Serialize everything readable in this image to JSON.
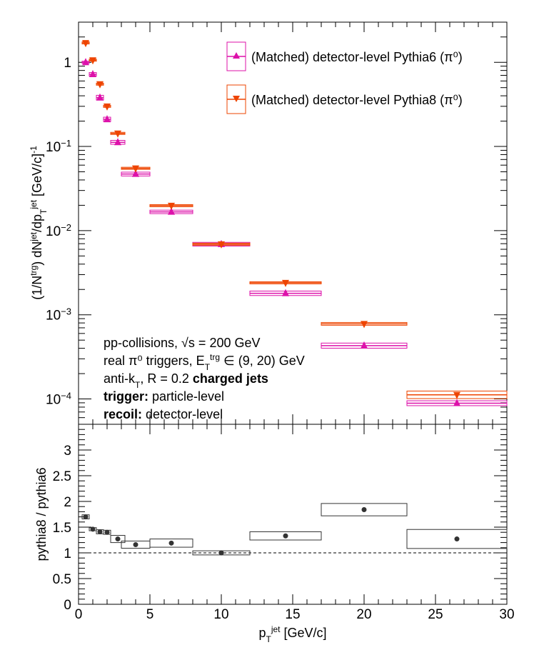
{
  "chart_data": [
    {
      "type": "scatter",
      "panel": "top",
      "x_axis": {
        "range": [
          0,
          30
        ]
      },
      "y_axis": {
        "scale": "log",
        "range": [
          5e-05,
          3.0
        ],
        "ticks": [
          {
            "v": 1,
            "base": "1",
            "exp": ""
          },
          {
            "v": 0.1,
            "base": "10",
            "exp": "−1"
          },
          {
            "v": 0.01,
            "base": "10",
            "exp": "−2"
          },
          {
            "v": 0.001,
            "base": "10",
            "exp": "−3"
          },
          {
            "v": 0.0001,
            "base": "10",
            "exp": "−4"
          }
        ]
      },
      "ylabel": {
        "p1": "(1/N",
        "sup1": "trg",
        "p2": ") dN",
        "sup2": "jet",
        "p3": "/dp",
        "sub3": "T",
        "sup3": "jet",
        "p4": " [GeV/c]",
        "sup4": "-1"
      },
      "legend": {
        "placement": "top-right",
        "entries": [
          {
            "label": "(Matched) detector-level Pythia6 (π⁰)",
            "marker": "triangle-up",
            "color": "#dd11aa"
          },
          {
            "label": "(Matched) detector-level Pythia8 (π⁰)",
            "marker": "triangle-down",
            "color": "#ee4400"
          }
        ]
      },
      "annotations": {
        "line1": "pp-collisions, √s = 200 GeV",
        "line2_a": "real π⁰ triggers, E",
        "line2_sub": "T",
        "line2_sup": "trg",
        "line2_b": " ∈ (9, 20) GeV",
        "line3_a": "anti-k",
        "line3_sub": "T",
        "line3_b": ", R = 0.2 ",
        "line3_bold": "charged jets",
        "line4_bold": "trigger:",
        "line4": " particle-level",
        "line5_bold": "recoil:",
        "line5": " detector-level"
      },
      "series": [
        {
          "name": "(Matched) detector-level Pythia6 (π⁰)",
          "color": "#dd11aa",
          "marker": "triangle-up",
          "points": [
            {
              "x": 0.5,
              "xlo": 0.25,
              "xhi": 0.75,
              "y": 1.0,
              "ylo": 0.97,
              "yhi": 1.03
            },
            {
              "x": 1.0,
              "xlo": 0.75,
              "xhi": 1.25,
              "y": 0.72,
              "ylo": 0.69,
              "yhi": 0.76
            },
            {
              "x": 1.5,
              "xlo": 1.25,
              "xhi": 1.75,
              "y": 0.38,
              "ylo": 0.36,
              "yhi": 0.41
            },
            {
              "x": 2.0,
              "xlo": 1.75,
              "xhi": 2.25,
              "y": 0.21,
              "ylo": 0.2,
              "yhi": 0.225
            },
            {
              "x": 2.75,
              "xlo": 2.25,
              "xhi": 3.25,
              "y": 0.112,
              "ylo": 0.106,
              "yhi": 0.118
            },
            {
              "x": 4.0,
              "xlo": 3.0,
              "xhi": 5.0,
              "y": 0.047,
              "ylo": 0.045,
              "yhi": 0.05
            },
            {
              "x": 6.5,
              "xlo": 5.0,
              "xhi": 8.0,
              "y": 0.0167,
              "ylo": 0.016,
              "yhi": 0.0176
            },
            {
              "x": 10.0,
              "xlo": 8.0,
              "xhi": 12.0,
              "y": 0.0069,
              "ylo": 0.0066,
              "yhi": 0.0073
            },
            {
              "x": 14.5,
              "xlo": 12.0,
              "xhi": 17.0,
              "y": 0.0018,
              "ylo": 0.00169,
              "yhi": 0.00191
            },
            {
              "x": 20.0,
              "xlo": 17.0,
              "xhi": 23.0,
              "y": 0.00043,
              "ylo": 0.0004,
              "yhi": 0.00046
            },
            {
              "x": 26.5,
              "xlo": 23.0,
              "xhi": 30.0,
              "y": 8.9e-05,
              "ylo": 8.3e-05,
              "yhi": 9.5e-05
            }
          ]
        },
        {
          "name": "(Matched) detector-level Pythia8 (π⁰)",
          "color": "#ee4400",
          "marker": "triangle-down",
          "points": [
            {
              "x": 0.5,
              "xlo": 0.25,
              "xhi": 0.75,
              "y": 1.7,
              "ylo": 1.68,
              "yhi": 1.72
            },
            {
              "x": 1.0,
              "xlo": 0.75,
              "xhi": 1.25,
              "y": 1.06,
              "ylo": 1.05,
              "yhi": 1.07
            },
            {
              "x": 1.5,
              "xlo": 1.25,
              "xhi": 1.75,
              "y": 0.55,
              "ylo": 0.545,
              "yhi": 0.555
            },
            {
              "x": 2.0,
              "xlo": 1.75,
              "xhi": 2.25,
              "y": 0.3,
              "ylo": 0.297,
              "yhi": 0.303
            },
            {
              "x": 2.75,
              "xlo": 2.25,
              "xhi": 3.25,
              "y": 0.143,
              "ylo": 0.141,
              "yhi": 0.145
            },
            {
              "x": 4.0,
              "xlo": 3.0,
              "xhi": 5.0,
              "y": 0.055,
              "ylo": 0.054,
              "yhi": 0.056
            },
            {
              "x": 6.5,
              "xlo": 5.0,
              "xhi": 8.0,
              "y": 0.0198,
              "ylo": 0.0196,
              "yhi": 0.02
            },
            {
              "x": 10.0,
              "xlo": 8.0,
              "xhi": 12.0,
              "y": 0.0069,
              "ylo": 0.0068,
              "yhi": 0.0071
            },
            {
              "x": 14.5,
              "xlo": 12.0,
              "xhi": 17.0,
              "y": 0.0024,
              "ylo": 0.00233,
              "yhi": 0.00247
            },
            {
              "x": 20.0,
              "xlo": 17.0,
              "xhi": 23.0,
              "y": 0.00078,
              "ylo": 0.00075,
              "yhi": 0.00081
            },
            {
              "x": 26.5,
              "xlo": 23.0,
              "xhi": 30.0,
              "y": 0.000112,
              "ylo": 0.000101,
              "yhi": 0.000124
            }
          ]
        }
      ]
    },
    {
      "type": "scatter",
      "panel": "bottom",
      "x_axis": {
        "range": [
          0,
          30
        ],
        "ticks": [
          0,
          5,
          10,
          15,
          20,
          25,
          30
        ]
      },
      "y_axis": {
        "range": [
          0,
          3.5
        ],
        "ticks": [
          "0",
          "0.5",
          "1",
          "1.5",
          "2",
          "2.5",
          "3"
        ]
      },
      "ylabel": "pythia8 / pythia6",
      "xlabel": {
        "p": "p",
        "sub": "T",
        "sup": "jet",
        "rest": " [GeV/c]"
      },
      "reference_line": 1.0,
      "series": [
        {
          "name": "",
          "color": "#333333",
          "points": [
            {
              "x": 0.5,
              "xlo": 0.25,
              "xhi": 0.75,
              "y": 1.7,
              "ylo": 1.66,
              "yhi": 1.74
            },
            {
              "x": 1.0,
              "xlo": 0.75,
              "xhi": 1.25,
              "y": 1.46,
              "ylo": 1.43,
              "yhi": 1.49
            },
            {
              "x": 1.5,
              "xlo": 1.25,
              "xhi": 1.75,
              "y": 1.41,
              "ylo": 1.37,
              "yhi": 1.45
            },
            {
              "x": 2.0,
              "xlo": 1.75,
              "xhi": 2.25,
              "y": 1.4,
              "ylo": 1.36,
              "yhi": 1.44
            },
            {
              "x": 2.75,
              "xlo": 2.25,
              "xhi": 3.25,
              "y": 1.27,
              "ylo": 1.2,
              "yhi": 1.34
            },
            {
              "x": 4.0,
              "xlo": 3.0,
              "xhi": 5.0,
              "y": 1.16,
              "ylo": 1.09,
              "yhi": 1.23
            },
            {
              "x": 6.5,
              "xlo": 5.0,
              "xhi": 8.0,
              "y": 1.19,
              "ylo": 1.11,
              "yhi": 1.27
            },
            {
              "x": 10.0,
              "xlo": 8.0,
              "xhi": 12.0,
              "y": 1.0,
              "ylo": 0.96,
              "yhi": 1.04
            },
            {
              "x": 14.5,
              "xlo": 12.0,
              "xhi": 17.0,
              "y": 1.33,
              "ylo": 1.25,
              "yhi": 1.41
            },
            {
              "x": 20.0,
              "xlo": 17.0,
              "xhi": 23.0,
              "y": 1.84,
              "ylo": 1.72,
              "yhi": 1.96
            },
            {
              "x": 26.5,
              "xlo": 23.0,
              "xhi": 30.0,
              "y": 1.27,
              "ylo": 1.08,
              "yhi": 1.45
            }
          ]
        }
      ]
    }
  ]
}
